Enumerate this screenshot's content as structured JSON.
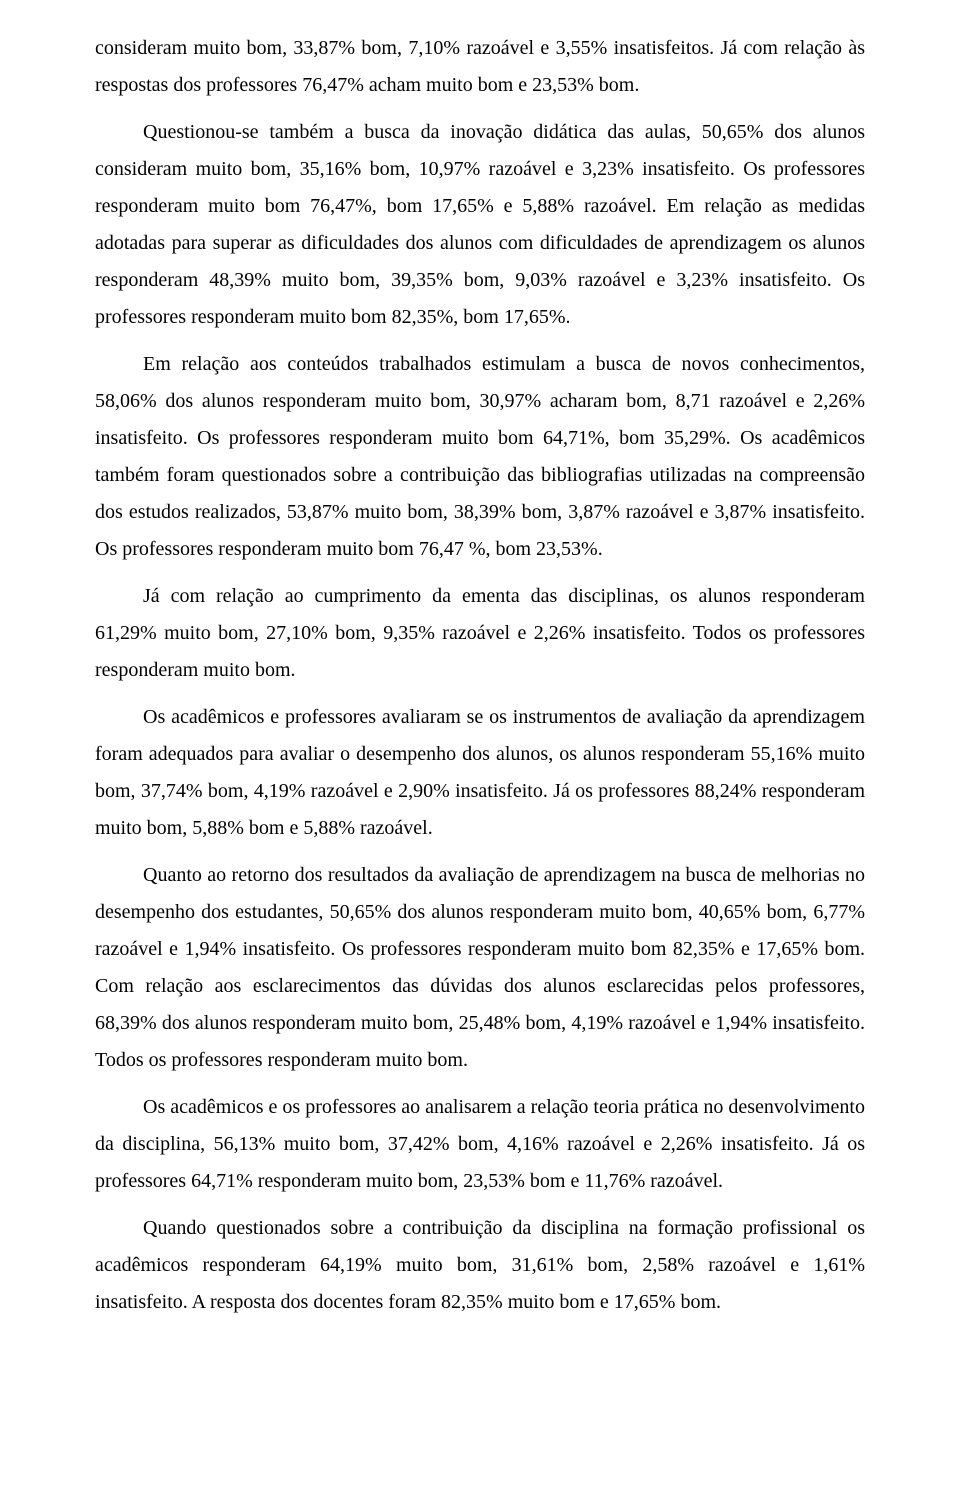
{
  "paragraphs": [
    "consideram muito bom, 33,87% bom, 7,10% razoável e 3,55% insatisfeitos. Já com relação às respostas dos professores 76,47% acham muito bom e 23,53% bom.",
    "Questionou-se também a busca da inovação didática das aulas, 50,65% dos alunos consideram muito bom, 35,16% bom, 10,97% razoável e 3,23% insatisfeito. Os professores responderam muito bom 76,47%, bom 17,65% e 5,88% razoável. Em relação as medidas adotadas para superar as dificuldades dos alunos com dificuldades de aprendizagem os alunos responderam 48,39% muito bom, 39,35% bom, 9,03% razoável e 3,23% insatisfeito. Os professores responderam muito bom 82,35%, bom 17,65%.",
    "Em relação aos conteúdos trabalhados estimulam a busca de novos conhecimentos, 58,06% dos alunos responderam muito bom, 30,97% acharam bom, 8,71 razoável e 2,26% insatisfeito. Os professores responderam muito bom 64,71%, bom 35,29%. Os acadêmicos também foram questionados sobre a contribuição das bibliografias utilizadas na compreensão dos estudos realizados, 53,87% muito bom, 38,39% bom, 3,87% razoável e 3,87% insatisfeito. Os professores responderam muito bom 76,47 %, bom 23,53%.",
    "Já com relação ao cumprimento da ementa das disciplinas, os alunos responderam 61,29% muito bom, 27,10% bom, 9,35% razoável e 2,26% insatisfeito. Todos os professores responderam muito bom.",
    "Os acadêmicos e professores avaliaram se os instrumentos de avaliação da aprendizagem foram adequados para avaliar o desempenho dos alunos, os alunos responderam 55,16% muito bom, 37,74% bom, 4,19% razoável e 2,90% insatisfeito. Já os professores 88,24% responderam muito bom, 5,88% bom e 5,88% razoável.",
    "Quanto ao retorno dos resultados da avaliação de aprendizagem na busca de melhorias no desempenho dos estudantes, 50,65% dos alunos responderam muito bom, 40,65% bom, 6,77% razoável e 1,94% insatisfeito. Os professores responderam muito bom 82,35% e 17,65% bom. Com relação aos esclarecimentos das dúvidas dos alunos esclarecidas pelos professores, 68,39% dos alunos responderam muito bom, 25,48% bom, 4,19% razoável e 1,94% insatisfeito. Todos os professores responderam muito bom.",
    "Os acadêmicos e os professores ao analisarem a relação teoria prática no desenvolvimento da disciplina, 56,13% muito bom, 37,42% bom, 4,16% razoável e 2,26% insatisfeito. Já os professores 64,71% responderam muito bom, 23,53% bom e 11,76% razoável.",
    "Quando questionados sobre a contribuição da disciplina na formação profissional os acadêmicos responderam 64,19% muito bom, 31,61% bom, 2,58% razoável e 1,61% insatisfeito. A resposta dos docentes foram 82,35% muito bom e 17,65% bom."
  ]
}
